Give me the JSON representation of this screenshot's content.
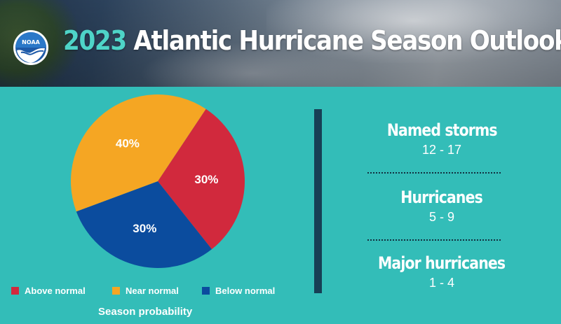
{
  "header": {
    "logo_text": "NOAA",
    "title_year": "2023",
    "title_rest": "Atlantic Hurricane Season Outlook"
  },
  "chart_data": {
    "type": "pie",
    "title": "Season probability",
    "slices": [
      {
        "name": "Above normal",
        "value": 30,
        "label": "30%",
        "color": "#d1293d"
      },
      {
        "name": "Below normal",
        "value": 30,
        "label": "30%",
        "color": "#0b4c9e"
      },
      {
        "name": "Near normal",
        "value": 40,
        "label": "40%",
        "color": "#f5a623"
      }
    ]
  },
  "legend": [
    {
      "label": "Above normal",
      "color": "#d1293d"
    },
    {
      "label": "Near normal",
      "color": "#f5a623"
    },
    {
      "label": "Below normal",
      "color": "#0b4c9e"
    }
  ],
  "stats": [
    {
      "label": "Named storms",
      "value": "12 - 17"
    },
    {
      "label": "Hurricanes",
      "value": "5 - 9"
    },
    {
      "label": "Major hurricanes",
      "value": "1 - 4"
    }
  ]
}
